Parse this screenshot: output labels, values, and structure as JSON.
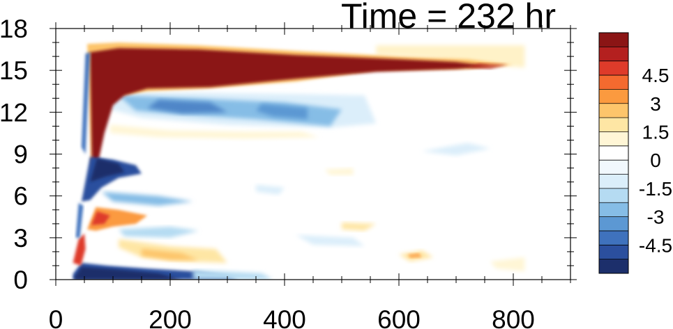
{
  "chart_data": {
    "type": "heatmap",
    "title": "Time = 232 hr",
    "xlabel": "",
    "ylabel": "",
    "xlim": [
      0,
      900
    ],
    "ylim": [
      0,
      18
    ],
    "x_ticks": [
      0,
      200,
      400,
      600,
      800
    ],
    "y_ticks": [
      0,
      3,
      6,
      9,
      12,
      15,
      18
    ],
    "colorbar": {
      "levels": [
        -5.25,
        -4.5,
        -3.75,
        -3,
        -2.25,
        -1.5,
        -0.75,
        0,
        0.75,
        1.5,
        2.25,
        3,
        3.75,
        4.5,
        5.25
      ],
      "labels": [
        "4.5",
        "3",
        "1.5",
        "0",
        "-1.5",
        "-3",
        "-4.5"
      ],
      "label_values": [
        4.5,
        3,
        1.5,
        0,
        -1.5,
        -3,
        -4.5
      ],
      "colors": [
        "#1c2f6b",
        "#2b4f9e",
        "#3f72bd",
        "#5c98d3",
        "#86bde6",
        "#b5dbf2",
        "#dbeefa",
        "#f1f8fd",
        "#ffffff",
        "#fff6d6",
        "#fee6a4",
        "#fdc56b",
        "#fb9a3f",
        "#f46a2f",
        "#de3b2a",
        "#b4201f",
        "#8b1515"
      ]
    },
    "features": [
      {
        "name": "strong positive band",
        "x_range": [
          60,
          780
        ],
        "y_range": [
          13.5,
          16.8
        ],
        "value": 5.5
      },
      {
        "name": "negative band",
        "x_range": [
          90,
          500
        ],
        "y_range": [
          11,
          13.2
        ],
        "value": -3
      },
      {
        "name": "near-surface negative band",
        "x_range": [
          30,
          300
        ],
        "y_range": [
          0,
          1
        ],
        "value": -5.5
      },
      {
        "name": "mid-level negative core",
        "x_range": [
          40,
          120
        ],
        "y_range": [
          5.5,
          9
        ],
        "value": -5
      },
      {
        "name": "low-level positive core",
        "x_range": [
          50,
          150
        ],
        "y_range": [
          3.5,
          5
        ],
        "value": 4
      },
      {
        "name": "weak positive band",
        "x_range": [
          120,
          300
        ],
        "y_range": [
          1,
          2.5
        ],
        "value": 1.5
      }
    ]
  }
}
